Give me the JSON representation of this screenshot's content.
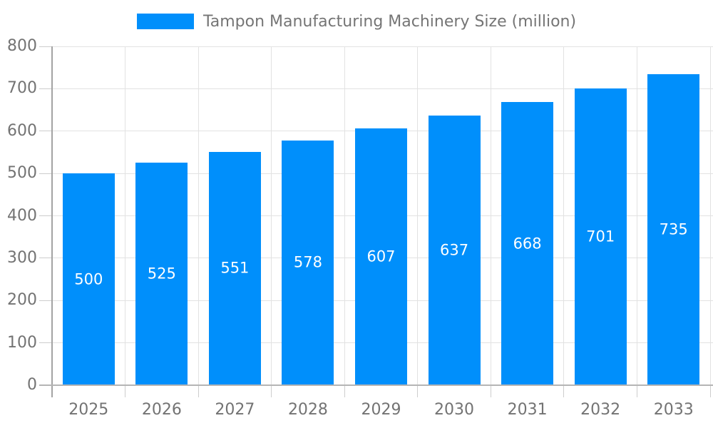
{
  "legend": {
    "label": "Tampon Manufacturing Machinery Size (million)"
  },
  "chart_data": {
    "type": "bar",
    "title": "Tampon Manufacturing Machinery Size (million)",
    "categories": [
      "2025",
      "2026",
      "2027",
      "2028",
      "2029",
      "2030",
      "2031",
      "2032",
      "2033"
    ],
    "series": [
      {
        "name": "Tampon Manufacturing Machinery Size (million)",
        "values": [
          500,
          525,
          551,
          578,
          607,
          637,
          668,
          701,
          735
        ]
      }
    ],
    "bar_value_labels": [
      "500",
      "525",
      "551",
      "578",
      "607",
      "637",
      "668",
      "701",
      "735"
    ],
    "ytick_labels": [
      "0",
      "100",
      "200",
      "300",
      "400",
      "500",
      "600",
      "700",
      "800"
    ],
    "ylim": [
      0,
      800
    ],
    "ytick_step": 100,
    "xlabel": "",
    "ylabel": "",
    "grid": true,
    "legend_position": "top"
  },
  "colors": {
    "bar": "#008FFB",
    "bar_label": "#FFFFFF",
    "axis_label": "#737373",
    "legend_text": "#757575",
    "grid_line": "#E2E2E2",
    "tick_line": "#CDCDCD",
    "y_axis_line": "#A3A3A3",
    "x_axis_line": "#B5B5B5",
    "background": "#FFFFFF"
  }
}
